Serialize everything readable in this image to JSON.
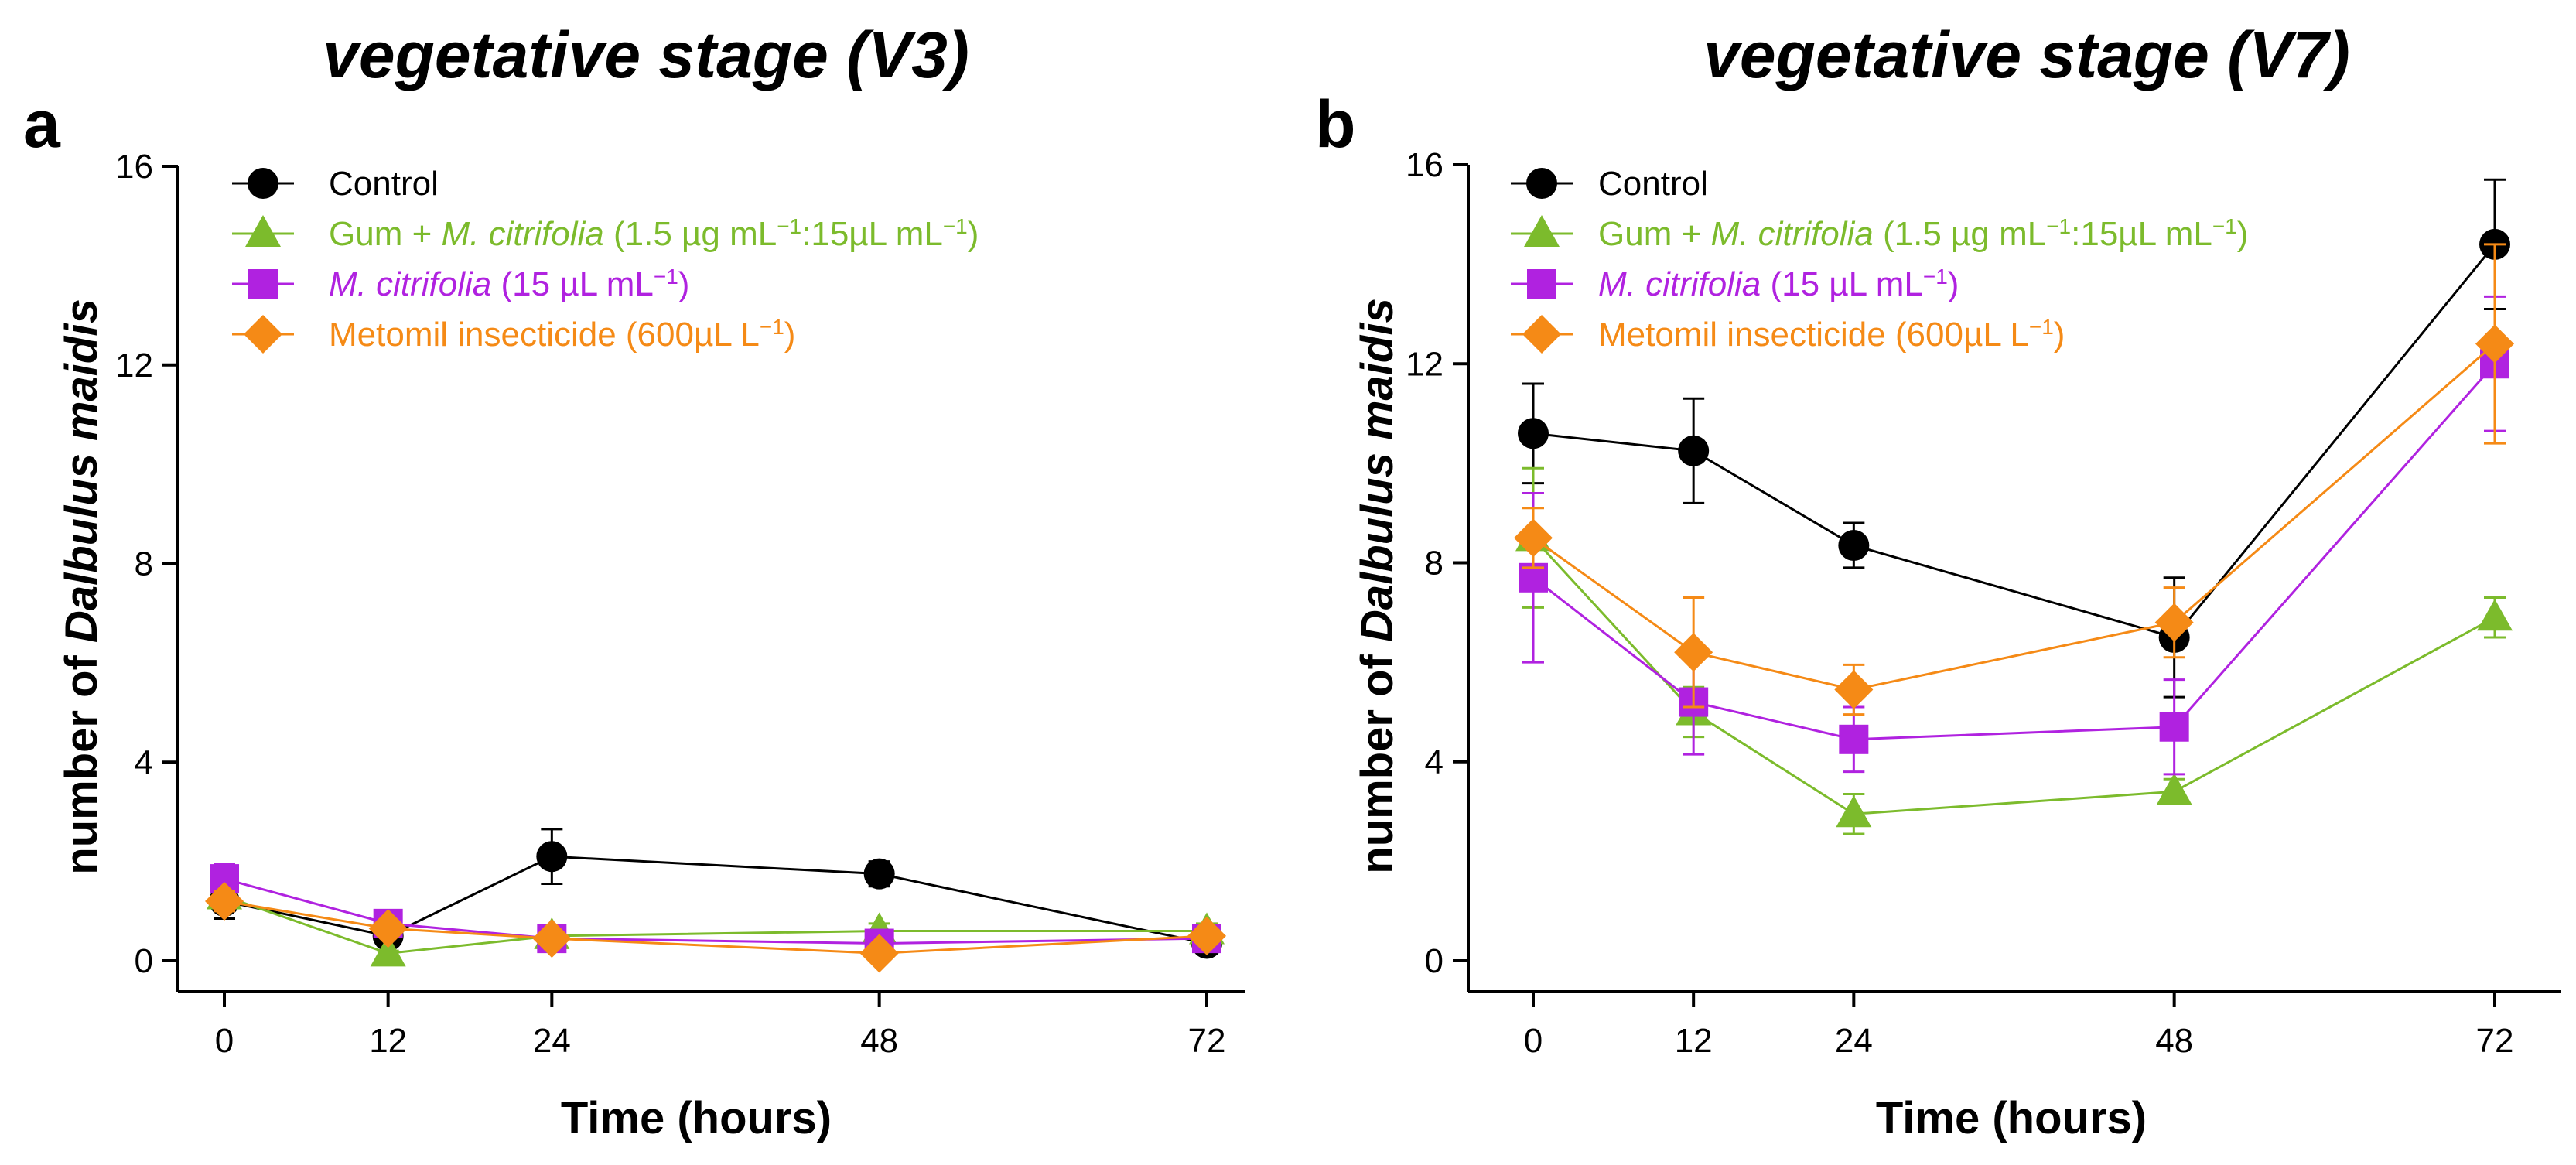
{
  "chart_data": [
    {
      "panel_letter": "a",
      "type": "line",
      "title": "vegetative stage (V3)",
      "xlabel": "Time (hours)",
      "ylabel_plain": "number of ",
      "ylabel_italic": "Dalbulus maidis",
      "x": [
        0,
        12,
        24,
        48,
        72
      ],
      "x_ticks": [
        "0",
        "12",
        "24",
        "48",
        "72"
      ],
      "ylim": [
        0,
        16
      ],
      "y_ticks": [
        "0",
        "4",
        "8",
        "12",
        "16"
      ],
      "legend_position": "top-left",
      "series": [
        {
          "name": "Control",
          "color": "#000000",
          "marker": "circle",
          "values": [
            1.2,
            0.5,
            2.1,
            1.75,
            0.35
          ],
          "errors": [
            0.35,
            0.1,
            0.55,
            0.25,
            0.15
          ]
        },
        {
          "name": "Gum + M. citrifolia (1.5 µg mL-1:15µL mL-1)",
          "color": "#7CBB2C",
          "marker": "triangle",
          "values": [
            1.3,
            0.15,
            0.5,
            0.6,
            0.6
          ],
          "errors": [
            0.25,
            0.05,
            0.15,
            0.15,
            0.15
          ]
        },
        {
          "name": "M. citrifolia (15 µL mL-1)",
          "color": "#B022E0",
          "marker": "square",
          "values": [
            1.65,
            0.75,
            0.45,
            0.35,
            0.45
          ],
          "errors": [
            0.3,
            0.15,
            0.15,
            0.1,
            0.2
          ]
        },
        {
          "name": "Metomil insecticide (600µL L-1)",
          "color": "#F58A16",
          "marker": "diamond",
          "values": [
            1.2,
            0.65,
            0.45,
            0.15,
            0.5
          ],
          "errors": [
            0.2,
            0.15,
            0.1,
            0.05,
            0.15
          ]
        }
      ]
    },
    {
      "panel_letter": "b",
      "type": "line",
      "title": "vegetative stage (V7)",
      "xlabel": "Time (hours)",
      "ylabel_plain": "number of ",
      "ylabel_italic": "Dalbulus maidis",
      "x": [
        0,
        12,
        24,
        48,
        72
      ],
      "x_ticks": [
        "0",
        "12",
        "24",
        "48",
        "72"
      ],
      "ylim": [
        0,
        16
      ],
      "y_ticks": [
        "0",
        "4",
        "8",
        "12",
        "16"
      ],
      "legend_position": "top-left",
      "series": [
        {
          "name": "Control",
          "color": "#000000",
          "marker": "circle",
          "values": [
            10.6,
            10.25,
            8.35,
            6.5,
            14.4
          ],
          "errors": [
            1.0,
            1.05,
            0.45,
            1.2,
            1.3
          ]
        },
        {
          "name": "Gum + M. citrifolia (1.5 µg mL-1:15µL mL-1)",
          "color": "#7CBB2C",
          "marker": "triangle",
          "values": [
            8.5,
            5.0,
            2.95,
            3.4,
            6.9
          ],
          "errors": [
            1.4,
            0.5,
            0.4,
            0.25,
            0.4
          ]
        },
        {
          "name": "M. citrifolia (15 µL mL-1)",
          "color": "#B022E0",
          "marker": "square",
          "values": [
            7.7,
            5.2,
            4.45,
            4.7,
            12.0
          ],
          "errors": [
            1.7,
            1.05,
            0.65,
            0.95,
            1.35
          ]
        },
        {
          "name": "Metomil insecticide (600µL L-1)",
          "color": "#F58A16",
          "marker": "diamond",
          "values": [
            8.5,
            6.2,
            5.45,
            6.8,
            12.4
          ],
          "errors": [
            0.6,
            1.1,
            0.5,
            0.7,
            2.0
          ]
        }
      ]
    }
  ],
  "legend": [
    {
      "plain_before": "",
      "italic": "",
      "plain_after": "Control",
      "sup1": "",
      "mid": "",
      "sup2": "",
      "end": ""
    },
    {
      "plain_before": "Gum + ",
      "italic": "M. citrifolia",
      "plain_after": " (1.5 µg mL",
      "sup1": "−1",
      "mid": ":15µL mL",
      "sup2": "−1",
      "end": ")"
    },
    {
      "plain_before": "",
      "italic": "M. citrifolia",
      "plain_after": " (15 µL mL",
      "sup1": "−1",
      "mid": "",
      "sup2": "",
      "end": ")"
    },
    {
      "plain_before": "",
      "italic": "",
      "plain_after": "Metomil insecticide (600µL L",
      "sup1": "−1",
      "mid": "",
      "sup2": "",
      "end": ")"
    }
  ]
}
